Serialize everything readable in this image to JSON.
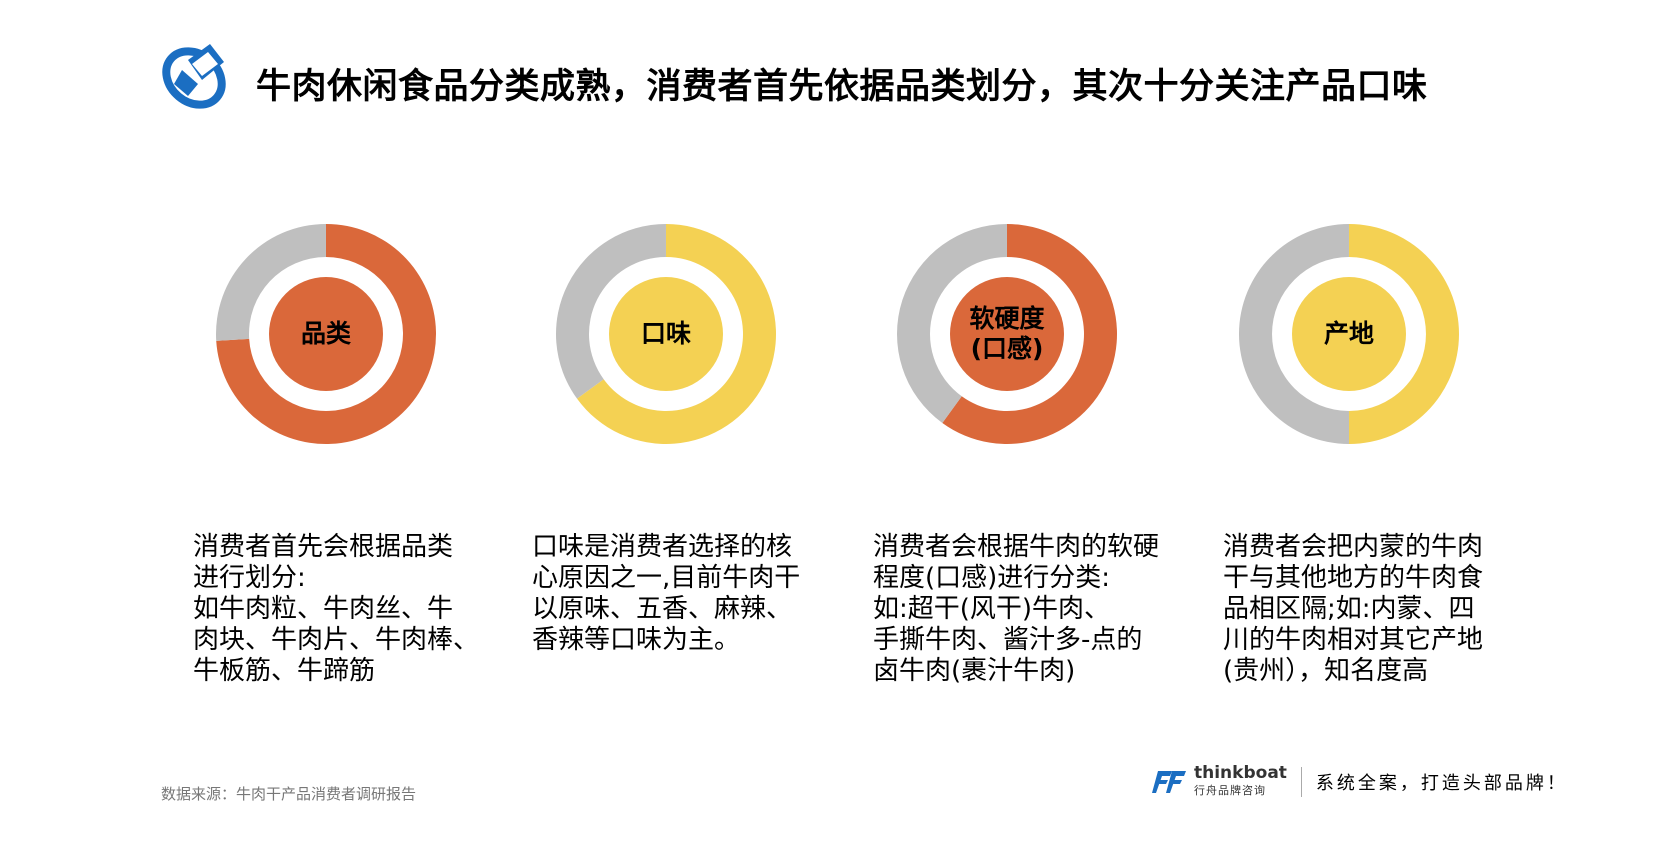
{
  "header": {
    "title": "牛肉休闲食品分类成熟，消费者首先依据品类划分，其次十分关注产品口味"
  },
  "chart_data": {
    "type": "pie",
    "charts": [
      {
        "label": "品类",
        "value": 74,
        "rest": 26,
        "color": "#DA683A",
        "rest_color": "#BFBFBF"
      },
      {
        "label": "口味",
        "value": 65,
        "rest": 35,
        "color": "#F4D153",
        "rest_color": "#BFBFBF"
      },
      {
        "label": "软硬度\n(口感)",
        "value": 60,
        "rest": 40,
        "color": "#DA683A",
        "rest_color": "#BFBFBF"
      },
      {
        "label": "产地",
        "value": 50,
        "rest": 50,
        "color": "#F4D153",
        "rest_color": "#BFBFBF"
      }
    ]
  },
  "descriptions": [
    "消费者首先会根据品类\n进行划分:\n如牛肉粒、牛肉丝、牛\n肉块、牛肉片、牛肉棒、\n牛板筋、牛蹄筋",
    "口味是消费者选择的核\n心原因之一,目前牛肉干\n以原味、五香、麻辣、\n香辣等口味为主。",
    "消费者会根据牛肉的软硬\n程度(口感)进行分类:\n如:超干(风干)牛肉、\n手撕牛肉、酱汁多-点的\n卤牛肉(裹汁牛肉)",
    "消费者会把内蒙的牛肉\n干与其他地方的牛肉食\n品相区隔;如:内蒙、四\n川的牛肉相对其它产地\n(贵州），知名度高"
  ],
  "footer": {
    "source": "数据来源：牛肉干产品消费者调研报告",
    "brand_name": "thinkboat",
    "brand_cn": "行舟品牌咨询",
    "slogan": "系统全案，打造头部品牌！"
  }
}
